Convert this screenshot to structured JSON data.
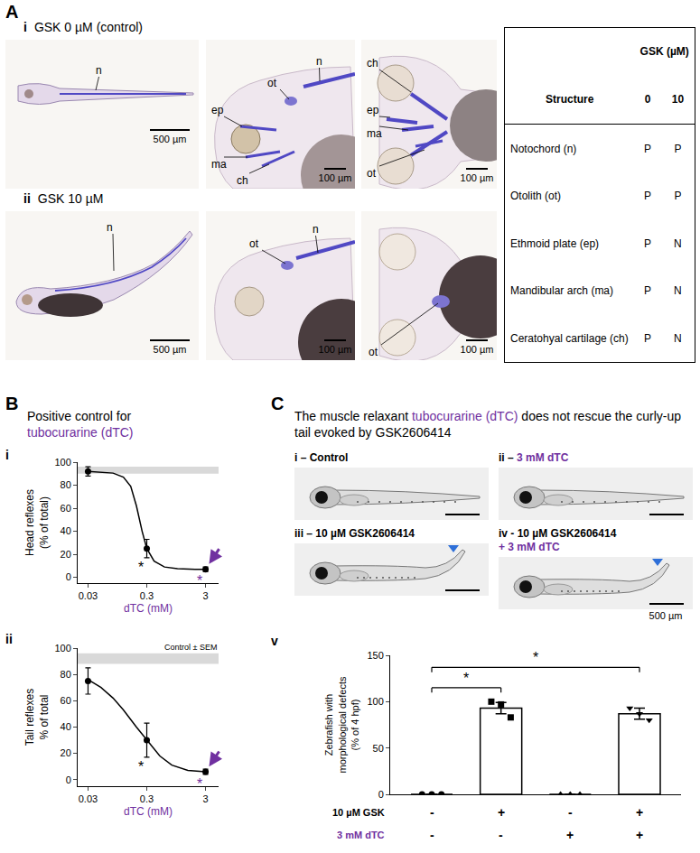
{
  "figure": {
    "panel_a": {
      "letter": "A",
      "rows": [
        {
          "numeral": "i",
          "title": "GSK 0 µM (control)",
          "images": [
            {
              "labels": [
                "n"
              ],
              "scale_bar": "500 µm"
            },
            {
              "labels": [
                "ot",
                "n",
                "ep",
                "ma",
                "ch"
              ],
              "scale_bar": "100 µm"
            },
            {
              "labels": [
                "ch",
                "ep",
                "ma",
                "ot"
              ],
              "scale_bar": "100 µm"
            }
          ]
        },
        {
          "numeral": "ii",
          "title": "GSK 10 µM",
          "images": [
            {
              "labels": [
                "n"
              ],
              "scale_bar": "500 µm"
            },
            {
              "labels": [
                "ot",
                "n"
              ],
              "scale_bar": "100 µm"
            },
            {
              "labels": [
                "ot"
              ],
              "scale_bar": "100 µm"
            }
          ]
        }
      ],
      "table": {
        "group_header": "GSK (µM)",
        "columns": [
          "Structure",
          "0",
          "10"
        ],
        "rows": [
          [
            "Notochord (n)",
            "P",
            "P"
          ],
          [
            "Otolith (ot)",
            "P",
            "P"
          ],
          [
            "Ethmoid plate (ep)",
            "P",
            "N"
          ],
          [
            "Mandibular arch (ma)",
            "P",
            "N"
          ],
          [
            "Ceratohyal cartilage (ch)",
            "P",
            "N"
          ]
        ]
      }
    },
    "panel_b": {
      "letter": "B",
      "title": "Positive control for",
      "title_highlight": "tubocurarine (dTC)",
      "highlight_color": "#7030a0",
      "numerals": [
        "i",
        "ii"
      ]
    },
    "panel_c": {
      "letter": "C",
      "title_parts": [
        {
          "text": "The muscle relaxant "
        },
        {
          "text": "tubocurarine (dTC)",
          "color": "#7030a0"
        },
        {
          "text": " does not rescue the curly-up tail evoked by GSK2606414"
        }
      ],
      "images": [
        {
          "parts": [
            {
              "text": "i – Control"
            }
          ],
          "curled": false
        },
        {
          "parts": [
            {
              "text": "ii – "
            },
            {
              "text": "3 mM dTC",
              "color": "#7030a0"
            }
          ],
          "curled": false
        },
        {
          "parts": [
            {
              "text": "iii – 10 µM GSK2606414"
            }
          ],
          "curled": true
        },
        {
          "parts": [
            {
              "text": "iv - 10 µM GSK2606414"
            },
            {
              "text": "+ 3 mM dTC",
              "color": "#7030a0",
              "newline": true
            }
          ],
          "curled": true
        }
      ],
      "arrow_color": "#2e6fd8",
      "scale_bar": "500 µm",
      "chart_numeral": "v"
    }
  },
  "chart_data": [
    {
      "type": "scatter",
      "x": [
        0.03,
        0.3,
        3
      ],
      "values": [
        92,
        25,
        7
      ],
      "errors": [
        4,
        8,
        2
      ],
      "fit": {
        "x": [
          0.03,
          0.05,
          0.08,
          0.12,
          0.16,
          0.2,
          0.25,
          0.3,
          0.4,
          0.6,
          1,
          2,
          3
        ],
        "values": [
          92,
          91.5,
          90.5,
          87,
          79,
          62,
          40,
          25,
          14,
          9,
          7.5,
          7,
          7
        ]
      },
      "color": "#000000",
      "x_label": "dTC (mM)",
      "x_label_color": "#7030a0",
      "y_label": "Head reflexes (% of total)",
      "log": "x",
      "xlim": [
        0.02,
        5
      ],
      "xticks": [
        0.03,
        0.3,
        3
      ],
      "ylim": [
        -5,
        100
      ],
      "yticks": [
        0,
        20,
        40,
        60,
        80,
        100
      ],
      "grid": false,
      "control_band": [
        90,
        96
      ],
      "annotations": [
        {
          "x": 0.3,
          "text": "*"
        },
        {
          "x": 3,
          "text": "*",
          "color": "#7030a0",
          "arrow": true
        }
      ]
    },
    {
      "type": "scatter",
      "x": [
        0.03,
        0.3,
        3
      ],
      "values": [
        75,
        30,
        6
      ],
      "errors": [
        10,
        13,
        2
      ],
      "fit": {
        "x": [
          0.03,
          0.05,
          0.08,
          0.12,
          0.2,
          0.3,
          0.5,
          0.8,
          1.5,
          3
        ],
        "values": [
          76,
          70,
          62,
          53,
          40,
          30,
          18,
          11,
          7,
          6
        ]
      },
      "color": "#000000",
      "x_label": "dTC (mM)",
      "x_label_color": "#7030a0",
      "y_label": "Tail reflexes % of total",
      "log": "x",
      "xlim": [
        0.02,
        5
      ],
      "xticks": [
        0.03,
        0.3,
        3
      ],
      "ylim": [
        -5,
        100
      ],
      "yticks": [
        0,
        20,
        40,
        60,
        80,
        100
      ],
      "grid": false,
      "control_band": [
        88,
        96
      ],
      "control_band_label": "Control ± SEM",
      "annotations": [
        {
          "x": 0.3,
          "text": "*"
        },
        {
          "x": 3,
          "text": "*",
          "color": "#7030a0",
          "arrow": true
        }
      ]
    },
    {
      "type": "bar",
      "categories": [
        null,
        null,
        null,
        null
      ],
      "values": [
        0,
        93,
        0,
        87
      ],
      "errors": [
        0,
        6,
        0,
        6
      ],
      "color": "#ffffff",
      "points": [
        [
          0,
          0,
          0
        ],
        [
          100,
          97,
          83
        ],
        [
          0,
          0,
          0
        ],
        [
          93,
          87,
          80
        ]
      ],
      "markers": [
        "circle",
        "square",
        "triangle-up",
        "triangle-down"
      ],
      "y_label": "Zebrafish with morphological defects (% of 4 hpf)",
      "ylim": [
        0,
        150
      ],
      "yticks": [
        0,
        50,
        100,
        150
      ],
      "grid": false,
      "tick_labels": "y",
      "significance": [
        {
          "from": 0,
          "to": 1,
          "label": "*"
        },
        {
          "from": 0,
          "to": 3,
          "label": "*"
        }
      ],
      "conditions": [
        {
          "label": "10 µM GSK",
          "marks": [
            "-",
            "+",
            "-",
            "+"
          ]
        },
        {
          "label": "3 mM dTC",
          "color": "#7030a0",
          "marks": [
            "-",
            "-",
            "+",
            "+"
          ]
        }
      ]
    }
  ]
}
